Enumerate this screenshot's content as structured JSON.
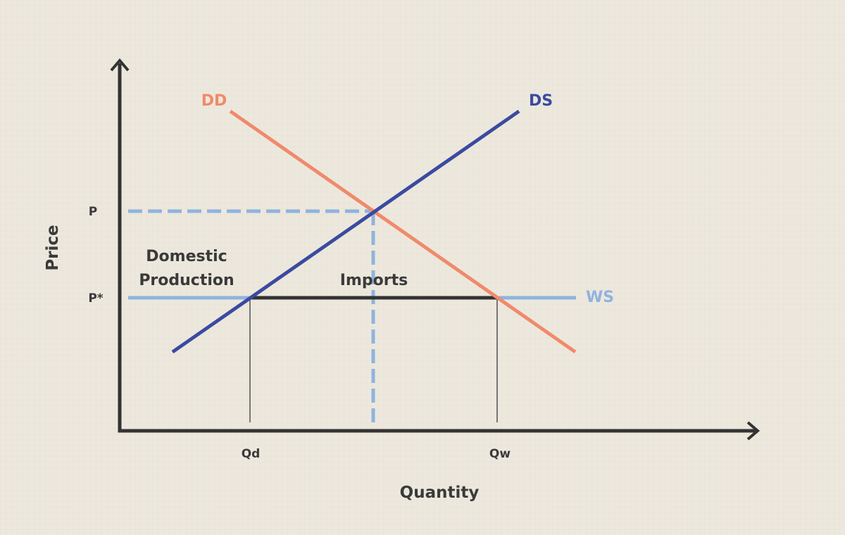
{
  "axes": {
    "y_label": "Price",
    "x_label": "Quantity"
  },
  "curves": {
    "demand": "DD",
    "supply": "DS",
    "world_supply": "WS"
  },
  "price_labels": {
    "autarky": "P",
    "world": "P*"
  },
  "quantity_labels": {
    "domestic": "Qd",
    "world": "Qw"
  },
  "regions": {
    "domestic_production": [
      "Domestic",
      "Production"
    ],
    "imports": "Imports"
  }
}
